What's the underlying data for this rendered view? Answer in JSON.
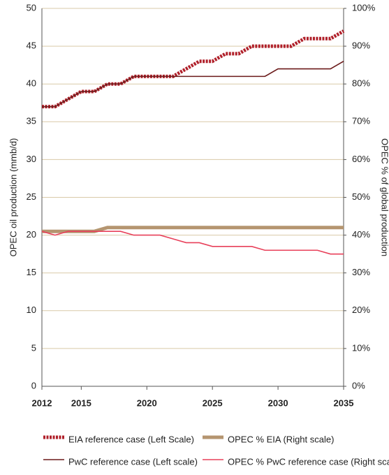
{
  "chart_data": {
    "type": "line",
    "ylabel": "OPEC oil production (mmb/d)",
    "y2label": "OPEC % of global production",
    "x": [
      2012,
      2013,
      2014,
      2015,
      2016,
      2017,
      2018,
      2019,
      2020,
      2021,
      2022,
      2023,
      2024,
      2025,
      2026,
      2027,
      2028,
      2029,
      2030,
      2031,
      2032,
      2033,
      2034,
      2035
    ],
    "xlim": [
      2012,
      2035
    ],
    "xticks": [
      2012,
      2015,
      2020,
      2025,
      2030,
      2035
    ],
    "ylim": [
      0,
      50
    ],
    "yticks": [
      0,
      5,
      10,
      15,
      20,
      25,
      30,
      35,
      40,
      45,
      50
    ],
    "y2lim": [
      0,
      100
    ],
    "y2ticks": [
      {
        "value": 0,
        "label": "0%"
      },
      {
        "value": 10,
        "label": "10%"
      },
      {
        "value": 20,
        "label": "20%"
      },
      {
        "value": 30,
        "label": "30%"
      },
      {
        "value": 40,
        "label": "40%"
      },
      {
        "value": 50,
        "label": "50%"
      },
      {
        "value": 60,
        "label": "60%"
      },
      {
        "value": 70,
        "label": "70%"
      },
      {
        "value": 80,
        "label": "80%"
      },
      {
        "value": 90,
        "label": "90%"
      },
      {
        "value": 100,
        "label": "100%"
      }
    ],
    "grid": true,
    "series": [
      {
        "name": "EIA reference case (Left Scale)",
        "color": "#b0202a",
        "dashed": true,
        "values": [
          37,
          37,
          38,
          39,
          39,
          40,
          40,
          41,
          41,
          41,
          41,
          42,
          43,
          43,
          44,
          44,
          45,
          45,
          45,
          45,
          46,
          46,
          46,
          47
        ]
      },
      {
        "name": "OPEC % EIA (Right scale)",
        "color": "#b59570",
        "axis": "y2",
        "values": [
          41,
          41,
          41,
          41,
          41,
          42,
          42,
          42,
          42,
          42,
          42,
          42,
          42,
          42,
          42,
          42,
          42,
          42,
          42,
          42,
          42,
          42,
          42,
          42
        ]
      },
      {
        "name": "PwC reference case (Left scale)",
        "color": "#6b1a1a",
        "values": [
          37,
          37,
          38,
          39,
          39,
          40,
          40,
          41,
          41,
          41,
          41,
          41,
          41,
          41,
          41,
          41,
          41,
          41,
          42,
          42,
          42,
          42,
          42,
          43
        ]
      },
      {
        "name": "OPEC % PwC reference case (Right scale)",
        "color": "#e8405a",
        "axis": "y2",
        "values": [
          41,
          40,
          41,
          41,
          41,
          41,
          41,
          40,
          40,
          40,
          39,
          38,
          38,
          37,
          37,
          37,
          37,
          36,
          36,
          36,
          36,
          36,
          35,
          35
        ]
      }
    ]
  }
}
